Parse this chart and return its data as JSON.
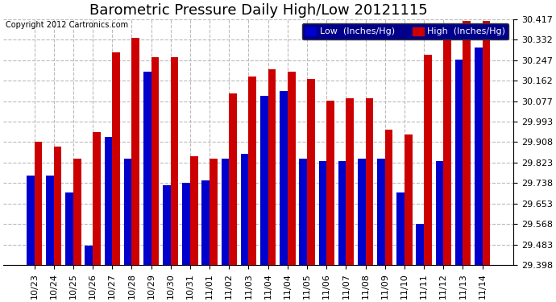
{
  "title": "Barometric Pressure Daily High/Low 20121115",
  "copyright": "Copyright 2012 Cartronics.com",
  "legend_low": "Low  (Inches/Hg)",
  "legend_high": "High  (Inches/Hg)",
  "background_color": "#ffffff",
  "plot_bg_color": "#ffffff",
  "grid_color": "#bbbbbb",
  "low_color": "#0000cc",
  "high_color": "#cc0000",
  "labels": [
    "10/23",
    "10/24",
    "10/25",
    "10/26",
    "10/27",
    "10/28",
    "10/29",
    "10/30",
    "10/31",
    "11/01",
    "11/02",
    "11/03",
    "11/04",
    "11/04",
    "11/05",
    "11/06",
    "11/07",
    "11/08",
    "11/09",
    "11/10",
    "11/11",
    "11/12",
    "11/13",
    "11/14"
  ],
  "low_values": [
    29.77,
    29.77,
    29.7,
    29.48,
    29.93,
    29.84,
    30.2,
    29.73,
    29.74,
    29.75,
    29.84,
    29.86,
    30.1,
    30.12,
    29.84,
    29.83,
    29.83,
    29.84,
    29.84,
    29.7,
    29.57,
    29.83,
    30.25,
    30.3
  ],
  "high_values": [
    29.91,
    29.89,
    29.84,
    29.95,
    30.28,
    30.34,
    30.26,
    30.26,
    29.85,
    29.84,
    30.11,
    30.18,
    30.21,
    30.2,
    30.17,
    30.08,
    30.09,
    30.09,
    29.96,
    29.94,
    30.27,
    30.4,
    30.41,
    30.41
  ],
  "ylim_min": 29.398,
  "ylim_max": 30.417,
  "yticks": [
    29.398,
    29.483,
    29.568,
    29.653,
    29.738,
    29.823,
    29.908,
    29.993,
    30.077,
    30.162,
    30.247,
    30.332,
    30.417
  ],
  "title_fontsize": 13,
  "tick_fontsize": 8,
  "legend_fontsize": 8,
  "copyright_fontsize": 7,
  "bar_bottom": 29.398
}
